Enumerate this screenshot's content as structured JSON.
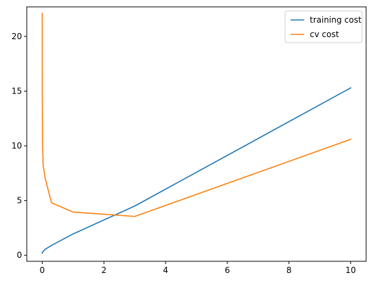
{
  "chart_data": {
    "type": "line",
    "title": "",
    "xlabel": "",
    "ylabel": "",
    "xlim": [
      -0.5,
      10.5
    ],
    "ylim": [
      -0.55,
      22.7
    ],
    "x_ticks": [
      0,
      2,
      4,
      6,
      8,
      10
    ],
    "y_ticks": [
      0,
      5,
      10,
      15,
      20
    ],
    "grid": false,
    "legend_position": "top-right",
    "series": [
      {
        "name": "training cost",
        "color": "#1f77b4",
        "x": [
          0,
          0.001,
          0.003,
          0.01,
          0.03,
          0.1,
          0.3,
          1,
          3,
          10
        ],
        "y": [
          0.2,
          0.22,
          0.24,
          0.27,
          0.35,
          0.55,
          0.9,
          1.95,
          4.5,
          15.3
        ]
      },
      {
        "name": "cv cost",
        "color": "#ff7f0e",
        "x": [
          0,
          0.001,
          0.003,
          0.01,
          0.03,
          0.1,
          0.3,
          1,
          3,
          10
        ],
        "y": [
          22.1,
          18.5,
          14.0,
          10.5,
          8.2,
          7.0,
          4.8,
          3.95,
          3.55,
          10.6
        ]
      }
    ]
  }
}
